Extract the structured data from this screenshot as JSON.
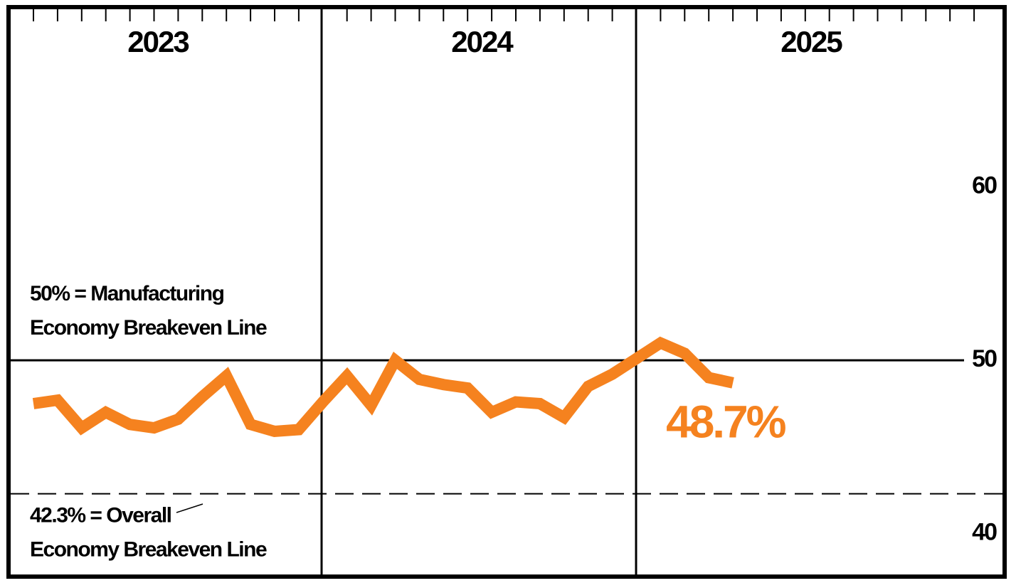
{
  "chart_data": {
    "type": "line",
    "year_labels": [
      "2023",
      "2024",
      "2025"
    ],
    "categories": [
      null,
      null,
      null,
      null,
      null,
      null,
      null,
      null,
      null,
      null,
      null,
      null,
      null,
      null,
      null,
      null,
      null,
      null,
      null,
      null,
      null,
      null,
      null,
      null,
      null,
      null,
      null,
      null,
      null,
      null
    ],
    "series": [
      {
        "name": null,
        "color": "#f5821f",
        "values": [
          47.5,
          47.7,
          46.1,
          47.0,
          46.3,
          46.1,
          46.6,
          47.9,
          49.1,
          46.3,
          45.9,
          46.0,
          47.6,
          49.1,
          47.4,
          50.0,
          48.9,
          48.6,
          48.4,
          47.0,
          47.6,
          47.5,
          46.7,
          48.5,
          49.2,
          50.1,
          51.0,
          50.4,
          49.0,
          48.7
        ],
        "value_labels": [
          null,
          null,
          null,
          null,
          null,
          null,
          null,
          null,
          null,
          null,
          null,
          null,
          null,
          null,
          null,
          null,
          null,
          null,
          null,
          null,
          null,
          null,
          null,
          null,
          null,
          null,
          null,
          null,
          null,
          "48.7%"
        ]
      }
    ],
    "ylim": [
      37.6,
      70.3
    ],
    "yticks": [
      40,
      50,
      60
    ],
    "reference_lines": [
      {
        "value": 50,
        "style": "solid",
        "label_lines": [
          "50% = Manufacturing",
          "Economy Breakeven Line"
        ]
      },
      {
        "value": 42.3,
        "style": "dashed",
        "label_lines": [
          "42.3% = Overall",
          "Economy Breakeven Line"
        ]
      }
    ]
  }
}
